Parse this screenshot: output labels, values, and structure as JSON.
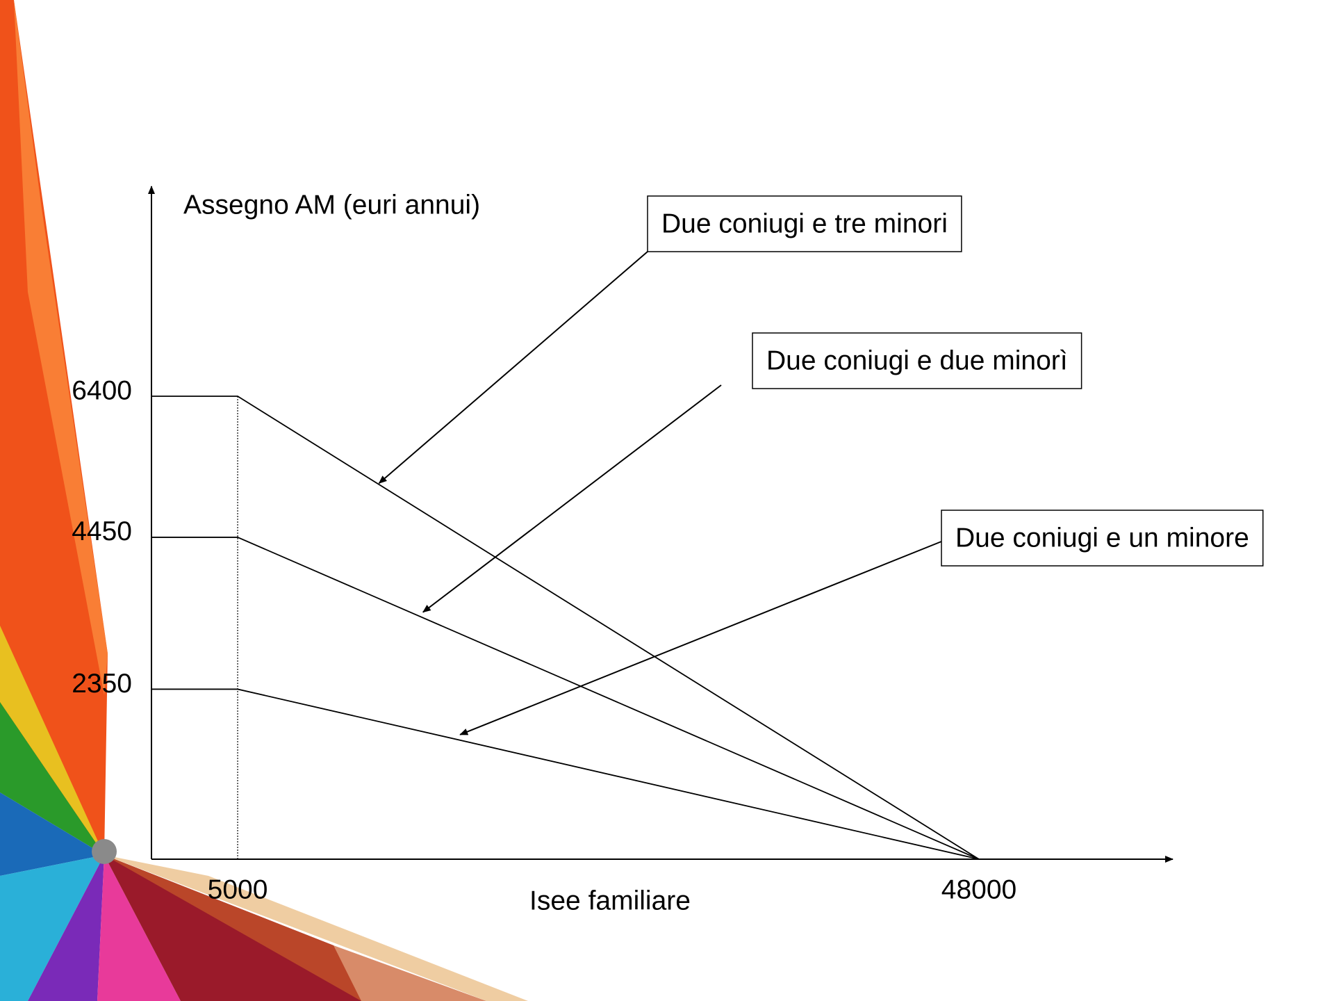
{
  "chart_data": {
    "type": "line",
    "y_label": "Assegno AM (euri annui)",
    "x_label": "Isee familiare",
    "x": [
      0,
      5000,
      48000
    ],
    "series": [
      {
        "name": "Due coniugi e tre minori",
        "color": "#000000",
        "values": [
          6400,
          6400,
          0
        ]
      },
      {
        "name": "Due coniugi e due minorì",
        "color": "#000000",
        "values": [
          4450,
          4450,
          0
        ]
      },
      {
        "name": "Due coniugi e un minore",
        "color": "#000000",
        "values": [
          2350,
          2350,
          0
        ]
      }
    ],
    "xlim": [
      0,
      48000
    ],
    "xticks": [
      5000,
      48000
    ],
    "ylim": [
      0,
      6400
    ],
    "yticks": [
      2350,
      4450,
      6400
    ]
  }
}
